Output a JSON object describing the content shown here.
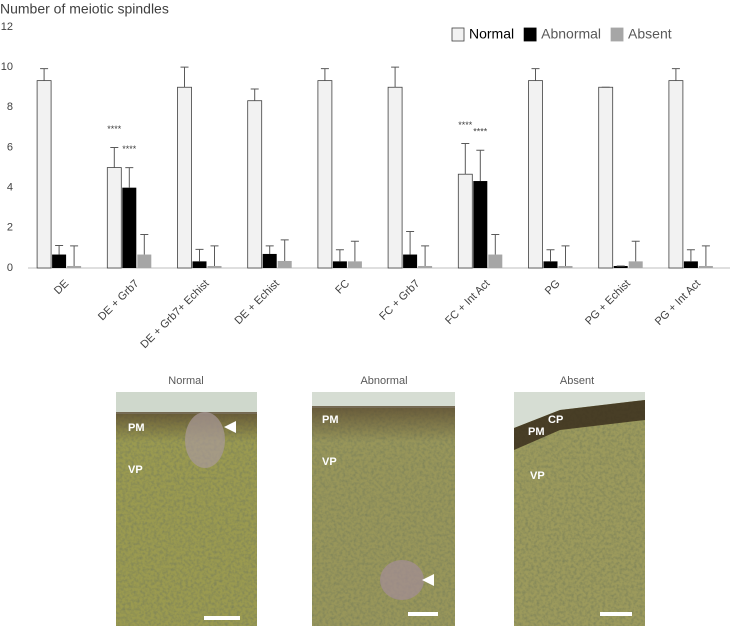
{
  "chart_data": {
    "type": "bar",
    "y_label": "Number of meiotic spindles",
    "categories": [
      "DE",
      "DE + Grb7",
      "DE + Grb7+ Echist",
      "DE + Echist",
      "FC",
      "FC + Grb7",
      "FC + Int Act",
      "PG",
      "PG + Echist",
      "PG + Int Act"
    ],
    "series": [
      {
        "name": "Normal",
        "color": "#f2f2f2",
        "values": [
          9.33,
          5.0,
          9.0,
          8.33,
          9.33,
          9.0,
          4.67,
          9.33,
          9.0,
          9.33
        ],
        "errors": [
          0.6,
          1.0,
          1.0,
          0.58,
          0.6,
          1.0,
          1.53,
          0.6,
          0,
          0.6
        ]
      },
      {
        "name": "Abnormal",
        "color": "#000000",
        "values": [
          0.67,
          4.0,
          0.33,
          0.7,
          0.33,
          0.67,
          4.33,
          0.33,
          0.1,
          0.33
        ],
        "errors": [
          0.45,
          1.0,
          0.6,
          0.4,
          0.58,
          1.15,
          1.53,
          0.58,
          0,
          0.58
        ]
      },
      {
        "name": "Absent",
        "color": "#a6a6a6",
        "values": [
          0.1,
          0.67,
          0.1,
          0.35,
          0.33,
          0.1,
          0.67,
          0.1,
          0.33,
          0.1
        ],
        "errors": [
          1.0,
          1.0,
          1.0,
          1.05,
          1.0,
          1.0,
          1.0,
          1.0,
          1.0,
          1.0
        ]
      }
    ],
    "annotations": [
      {
        "text": "****",
        "series": "Normal",
        "category": "DE + Grb7"
      },
      {
        "text": "****",
        "series": "Abnormal",
        "category": "DE + Grb7"
      },
      {
        "text": "****",
        "series": "Normal",
        "category": "FC + Int Act"
      },
      {
        "text": "****",
        "series": "Abnormal",
        "category": "FC + Int Act"
      }
    ],
    "ylim": [
      0,
      12
    ],
    "yticks": [
      0,
      2,
      4,
      6,
      8,
      10,
      12
    ],
    "legend": "top-right"
  },
  "panels": [
    {
      "title": "Normal",
      "labels": [
        "PM",
        "VP"
      ]
    },
    {
      "title": "Abnormal",
      "labels": [
        "PM",
        "VP"
      ]
    },
    {
      "title": "Absent",
      "labels": [
        "PM",
        "CP",
        "VP"
      ]
    }
  ]
}
